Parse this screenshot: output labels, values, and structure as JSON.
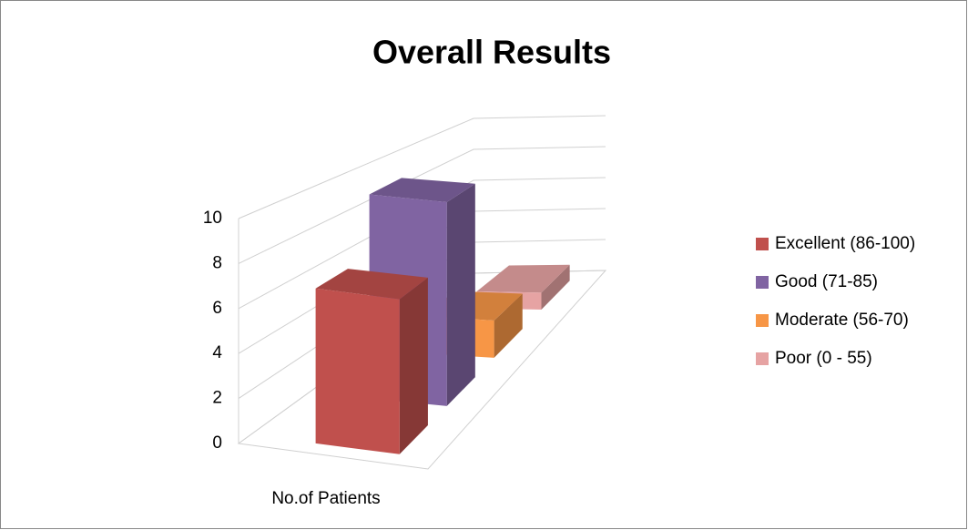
{
  "chart_data": {
    "type": "bar3d",
    "title": "Overall Results",
    "categories": [
      "No.of Patients"
    ],
    "series": [
      {
        "name": "Excellent (86-100)",
        "color": "#c0504d",
        "values": [
          7
        ]
      },
      {
        "name": "Good (71-85)",
        "color": "#8064a2",
        "values": [
          10
        ]
      },
      {
        "name": "Moderate (56-70)",
        "color": "#f79646",
        "values": [
          2
        ]
      },
      {
        "name": "Poor (0 - 55)",
        "color": "#e6a3a3",
        "values": [
          1
        ]
      }
    ],
    "ylim": [
      0,
      10
    ],
    "yticks": [
      0,
      2,
      4,
      6,
      8,
      10
    ],
    "grid": true,
    "legend": "right"
  }
}
